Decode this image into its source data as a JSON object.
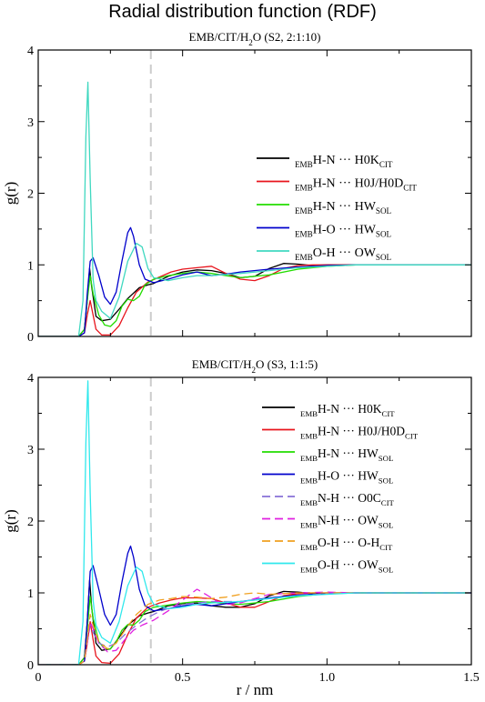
{
  "figure": {
    "title": "Radial distribution function (RDF)",
    "xlabel": "r / nm",
    "ylabel": "g(r)"
  },
  "chart_data": [
    {
      "type": "line",
      "title": "EMB/CIT/H₂O (S2, 2:1:10)",
      "title_parts": {
        "a": "EMB/CIT/H",
        "sub": "2",
        "b": "O (S2, 2:1:10)"
      },
      "xlabel": "r / nm",
      "ylabel": "g(r)",
      "xlim": [
        0,
        1.5
      ],
      "ylim": [
        0,
        4
      ],
      "xticks": [
        "0",
        "0.5",
        "1.0",
        "1.5"
      ],
      "yticks": [
        "0",
        "1",
        "2",
        "3",
        "4"
      ],
      "legend_position": "top-right",
      "vline": 0.39,
      "series": [
        {
          "name": "EMBH-N ··· H0KCIT",
          "label": {
            "pre": "EMB",
            "main": "H-N ··· H0K",
            "sub": "CIT"
          },
          "color": "#000000",
          "dash": false,
          "x": [
            0,
            0.14,
            0.16,
            0.17,
            0.178,
            0.185,
            0.2,
            0.22,
            0.25,
            0.28,
            0.31,
            0.35,
            0.38,
            0.4,
            0.45,
            0.5,
            0.55,
            0.6,
            0.65,
            0.7,
            0.75,
            0.8,
            0.85,
            0.9,
            0.95,
            1.0,
            1.1,
            1.2,
            1.3,
            1.4,
            1.5
          ],
          "y": [
            0,
            0,
            0.1,
            0.5,
            0.95,
            0.7,
            0.28,
            0.22,
            0.24,
            0.38,
            0.53,
            0.68,
            0.72,
            0.74,
            0.84,
            0.9,
            0.93,
            0.92,
            0.88,
            0.82,
            0.84,
            0.95,
            1.02,
            1.01,
            0.99,
            1.0,
            1.0,
            1.0,
            1.0,
            1.0,
            1.0
          ]
        },
        {
          "name": "EMBH-N ··· H0J/H0DCIT",
          "label": {
            "pre": "EMB",
            "main": "H-N ··· H0J/H0D",
            "sub": "CIT"
          },
          "color": "#e8141c",
          "dash": false,
          "x": [
            0,
            0.14,
            0.16,
            0.17,
            0.18,
            0.19,
            0.2,
            0.22,
            0.25,
            0.28,
            0.31,
            0.34,
            0.38,
            0.42,
            0.46,
            0.5,
            0.55,
            0.6,
            0.65,
            0.7,
            0.75,
            0.8,
            0.85,
            0.9,
            0.95,
            1.0,
            1.1,
            1.2,
            1.3,
            1.4,
            1.5
          ],
          "y": [
            0,
            0,
            0.05,
            0.3,
            0.5,
            0.3,
            0.1,
            0.02,
            0.02,
            0.15,
            0.4,
            0.62,
            0.76,
            0.83,
            0.9,
            0.94,
            0.96,
            0.98,
            0.88,
            0.8,
            0.78,
            0.85,
            0.95,
            0.99,
            1.0,
            1.0,
            1.0,
            1.0,
            1.0,
            1.0,
            1.0
          ]
        },
        {
          "name": "EMBH-N ··· HWSOL",
          "label": {
            "pre": "EMB",
            "main": "H-N ··· HW",
            "sub": "SOL"
          },
          "color": "#22dd00",
          "dash": false,
          "x": [
            0,
            0.14,
            0.16,
            0.17,
            0.18,
            0.19,
            0.21,
            0.23,
            0.25,
            0.27,
            0.29,
            0.31,
            0.33,
            0.35,
            0.37,
            0.4,
            0.45,
            0.5,
            0.55,
            0.6,
            0.65,
            0.7,
            0.8,
            0.9,
            1.0,
            1.1,
            1.2,
            1.3,
            1.4,
            1.5
          ],
          "y": [
            0,
            0,
            0.1,
            0.5,
            0.85,
            0.6,
            0.3,
            0.16,
            0.14,
            0.22,
            0.42,
            0.52,
            0.5,
            0.56,
            0.72,
            0.8,
            0.85,
            0.88,
            0.9,
            0.88,
            0.85,
            0.82,
            0.86,
            0.94,
            0.98,
            1.0,
            1.0,
            1.0,
            1.0,
            1.0
          ]
        },
        {
          "name": "EMBH-O ··· HWSOL",
          "label": {
            "pre": "EMB",
            "main": "H-O ··· HW",
            "sub": "SOL"
          },
          "color": "#0000cc",
          "dash": false,
          "x": [
            0,
            0.14,
            0.16,
            0.17,
            0.18,
            0.19,
            0.21,
            0.23,
            0.25,
            0.27,
            0.29,
            0.31,
            0.32,
            0.33,
            0.35,
            0.37,
            0.4,
            0.45,
            0.5,
            0.55,
            0.6,
            0.65,
            0.7,
            0.8,
            0.9,
            1.0,
            1.1,
            1.2,
            1.3,
            1.4,
            1.5
          ],
          "y": [
            0,
            0,
            0.05,
            0.6,
            1.05,
            1.1,
            0.85,
            0.55,
            0.45,
            0.62,
            1.05,
            1.45,
            1.52,
            1.4,
            1.0,
            0.8,
            0.75,
            0.8,
            0.86,
            0.9,
            0.85,
            0.87,
            0.9,
            0.94,
            0.97,
            0.99,
            1.0,
            1.0,
            1.0,
            1.0,
            1.0
          ]
        },
        {
          "name": "EMBO-H ··· OWSOL",
          "label": {
            "pre": "EMB",
            "main": "O-H ··· OW",
            "sub": "SOL"
          },
          "color": "#40d8c0",
          "dash": false,
          "x": [
            0,
            0.14,
            0.155,
            0.165,
            0.172,
            0.18,
            0.19,
            0.2,
            0.22,
            0.25,
            0.28,
            0.31,
            0.34,
            0.36,
            0.38,
            0.4,
            0.45,
            0.5,
            0.55,
            0.6,
            0.7,
            0.8,
            0.9,
            1.0,
            1.1,
            1.2,
            1.3,
            1.4,
            1.5
          ],
          "y": [
            0,
            0,
            0.5,
            2.8,
            3.55,
            2.2,
            0.8,
            0.5,
            0.35,
            0.25,
            0.55,
            1.05,
            1.3,
            1.25,
            0.95,
            0.82,
            0.78,
            0.82,
            0.85,
            0.85,
            0.88,
            0.92,
            0.96,
            0.98,
            1.0,
            1.0,
            1.0,
            1.0,
            1.0
          ]
        }
      ]
    },
    {
      "type": "line",
      "title": "EMB/CIT/H₂O (S3, 1:1:5)",
      "title_parts": {
        "a": "EMB/CIT/H",
        "sub": "2",
        "b": "O (S3, 1:1:5)"
      },
      "xlabel": "r / nm",
      "ylabel": "g(r)",
      "xlim": [
        0,
        1.5
      ],
      "ylim": [
        0,
        4
      ],
      "xticks": [
        "0",
        "0.5",
        "1.0",
        "1.5"
      ],
      "yticks": [
        "0",
        "1",
        "2",
        "3",
        "4"
      ],
      "legend_position": "right",
      "vline": 0.39,
      "series": [
        {
          "name": "EMBH-N ··· H0KCIT",
          "label": {
            "pre": "EMB",
            "main": "H-N ··· H0K",
            "sub": "CIT"
          },
          "color": "#000000",
          "dash": false,
          "x": [
            0,
            0.14,
            0.16,
            0.17,
            0.178,
            0.185,
            0.2,
            0.22,
            0.25,
            0.28,
            0.31,
            0.35,
            0.38,
            0.4,
            0.45,
            0.5,
            0.55,
            0.6,
            0.65,
            0.7,
            0.75,
            0.8,
            0.85,
            0.9,
            0.95,
            1.0,
            1.1,
            1.2,
            1.3,
            1.4,
            1.5
          ],
          "y": [
            0,
            0,
            0.1,
            0.6,
            1.18,
            0.8,
            0.3,
            0.2,
            0.22,
            0.38,
            0.55,
            0.68,
            0.72,
            0.74,
            0.82,
            0.85,
            0.86,
            0.82,
            0.8,
            0.8,
            0.85,
            0.96,
            1.02,
            1.01,
            0.99,
            1.0,
            1.0,
            1.0,
            1.0,
            1.0,
            1.0
          ]
        },
        {
          "name": "EMBH-N ··· H0J/H0DCIT",
          "label": {
            "pre": "EMB",
            "main": "H-N ··· H0J/H0D",
            "sub": "CIT"
          },
          "color": "#e8141c",
          "dash": false,
          "x": [
            0,
            0.14,
            0.16,
            0.17,
            0.18,
            0.19,
            0.2,
            0.22,
            0.25,
            0.28,
            0.31,
            0.34,
            0.38,
            0.42,
            0.46,
            0.5,
            0.55,
            0.6,
            0.65,
            0.7,
            0.75,
            0.8,
            0.85,
            0.9,
            0.95,
            1.0,
            1.1,
            1.2,
            1.3,
            1.4,
            1.5
          ],
          "y": [
            0,
            0,
            0.05,
            0.3,
            0.6,
            0.35,
            0.12,
            0.03,
            0.02,
            0.15,
            0.42,
            0.65,
            0.8,
            0.86,
            0.9,
            0.93,
            0.93,
            0.92,
            0.86,
            0.8,
            0.8,
            0.88,
            0.96,
            0.99,
            1.0,
            1.0,
            1.0,
            1.0,
            1.0,
            1.0,
            1.0
          ]
        },
        {
          "name": "EMBH-N ··· HWSOL",
          "label": {
            "pre": "EMB",
            "main": "H-N ··· HW",
            "sub": "SOL"
          },
          "color": "#22dd00",
          "dash": false,
          "x": [
            0,
            0.14,
            0.16,
            0.17,
            0.18,
            0.19,
            0.21,
            0.23,
            0.25,
            0.27,
            0.29,
            0.31,
            0.33,
            0.35,
            0.37,
            0.4,
            0.45,
            0.5,
            0.55,
            0.6,
            0.65,
            0.7,
            0.8,
            0.9,
            1.0,
            1.1,
            1.2,
            1.3,
            1.4,
            1.5
          ],
          "y": [
            0,
            0,
            0.1,
            0.5,
            0.95,
            0.65,
            0.32,
            0.22,
            0.22,
            0.32,
            0.48,
            0.56,
            0.55,
            0.62,
            0.74,
            0.8,
            0.83,
            0.86,
            0.88,
            0.87,
            0.85,
            0.84,
            0.88,
            0.95,
            0.99,
            1.0,
            1.0,
            1.0,
            1.0,
            1.0
          ]
        },
        {
          "name": "EMBH-O ··· HWSOL",
          "label": {
            "pre": "EMB",
            "main": "H-O ··· HW",
            "sub": "SOL"
          },
          "color": "#0000cc",
          "dash": false,
          "x": [
            0,
            0.14,
            0.16,
            0.17,
            0.18,
            0.19,
            0.21,
            0.23,
            0.25,
            0.27,
            0.29,
            0.31,
            0.32,
            0.33,
            0.35,
            0.37,
            0.4,
            0.45,
            0.5,
            0.55,
            0.6,
            0.65,
            0.7,
            0.8,
            0.9,
            1.0,
            1.1,
            1.2,
            1.3,
            1.4,
            1.5
          ],
          "y": [
            0,
            0,
            0.05,
            0.6,
            1.3,
            1.38,
            1.05,
            0.7,
            0.55,
            0.7,
            1.15,
            1.55,
            1.65,
            1.5,
            1.05,
            0.82,
            0.75,
            0.78,
            0.82,
            0.84,
            0.82,
            0.85,
            0.88,
            0.93,
            0.97,
            0.99,
            1.0,
            1.0,
            1.0,
            1.0,
            1.0
          ]
        },
        {
          "name": "EMBN-H ··· O0CCIT",
          "label": {
            "pre": "EMB",
            "main": "N-H ··· O0C",
            "sub": "CIT"
          },
          "color": "#8870d8",
          "dash": true,
          "x": [
            0,
            0.14,
            0.16,
            0.17,
            0.18,
            0.19,
            0.21,
            0.24,
            0.27,
            0.3,
            0.34,
            0.38,
            0.42,
            0.46,
            0.5,
            0.55,
            0.6,
            0.65,
            0.7,
            0.8,
            0.9,
            1.0,
            1.1,
            1.2,
            1.3,
            1.4,
            1.5
          ],
          "y": [
            0,
            0,
            0.05,
            0.3,
            0.55,
            0.45,
            0.3,
            0.25,
            0.3,
            0.42,
            0.55,
            0.66,
            0.74,
            0.8,
            0.84,
            0.86,
            0.88,
            0.88,
            0.88,
            0.92,
            0.96,
            0.99,
            1.0,
            1.0,
            1.0,
            1.0,
            1.0
          ]
        },
        {
          "name": "EMBN-H ··· OWSOL",
          "label": {
            "pre": "EMB",
            "main": "N-H ··· OW",
            "sub": "SOL"
          },
          "color": "#e020e0",
          "dash": true,
          "x": [
            0,
            0.14,
            0.16,
            0.17,
            0.18,
            0.19,
            0.21,
            0.24,
            0.27,
            0.3,
            0.33,
            0.36,
            0.4,
            0.45,
            0.5,
            0.55,
            0.58,
            0.62,
            0.66,
            0.7,
            0.75,
            0.8,
            0.9,
            1.0,
            1.1,
            1.2,
            1.3,
            1.4,
            1.5
          ],
          "y": [
            0,
            0,
            0.05,
            0.3,
            0.6,
            0.5,
            0.3,
            0.18,
            0.2,
            0.35,
            0.48,
            0.55,
            0.62,
            0.75,
            0.9,
            1.05,
            0.98,
            0.88,
            0.84,
            0.86,
            0.92,
            0.98,
            1.0,
            1.01,
            1.0,
            1.0,
            1.0,
            1.0,
            1.0
          ]
        },
        {
          "name": "EMBO-H ··· O-HCIT",
          "label": {
            "pre": "EMB",
            "main": "O-H ··· O-H",
            "sub": "CIT"
          },
          "color": "#f0a020",
          "dash": true,
          "x": [
            0,
            0.14,
            0.16,
            0.17,
            0.18,
            0.19,
            0.21,
            0.24,
            0.27,
            0.3,
            0.34,
            0.38,
            0.42,
            0.46,
            0.5,
            0.55,
            0.6,
            0.65,
            0.7,
            0.75,
            0.8,
            0.9,
            1.0,
            1.1,
            1.2,
            1.3,
            1.4,
            1.5
          ],
          "y": [
            0,
            0,
            0.05,
            0.35,
            0.7,
            0.55,
            0.32,
            0.22,
            0.3,
            0.48,
            0.7,
            0.84,
            0.9,
            0.92,
            0.95,
            0.94,
            0.92,
            0.94,
            0.98,
            1.0,
            0.98,
            1.0,
            1.0,
            1.0,
            1.0,
            1.0,
            1.0,
            1.0
          ]
        },
        {
          "name": "EMBO-H ··· OWSOL",
          "label": {
            "pre": "EMB",
            "main": "O-H ··· OW",
            "sub": "SOL"
          },
          "color": "#30e8ec",
          "dash": false,
          "x": [
            0,
            0.14,
            0.155,
            0.165,
            0.172,
            0.18,
            0.19,
            0.2,
            0.22,
            0.25,
            0.28,
            0.31,
            0.34,
            0.36,
            0.38,
            0.4,
            0.45,
            0.5,
            0.55,
            0.6,
            0.7,
            0.8,
            0.9,
            1.0,
            1.1,
            1.2,
            1.3,
            1.4,
            1.5
          ],
          "y": [
            0,
            0,
            0.6,
            3.1,
            3.95,
            2.4,
            0.9,
            0.55,
            0.38,
            0.3,
            0.6,
            1.1,
            1.36,
            1.3,
            1.0,
            0.84,
            0.78,
            0.8,
            0.84,
            0.86,
            0.88,
            0.92,
            0.96,
            0.98,
            1.0,
            1.0,
            1.0,
            1.0,
            1.0
          ]
        }
      ]
    }
  ]
}
